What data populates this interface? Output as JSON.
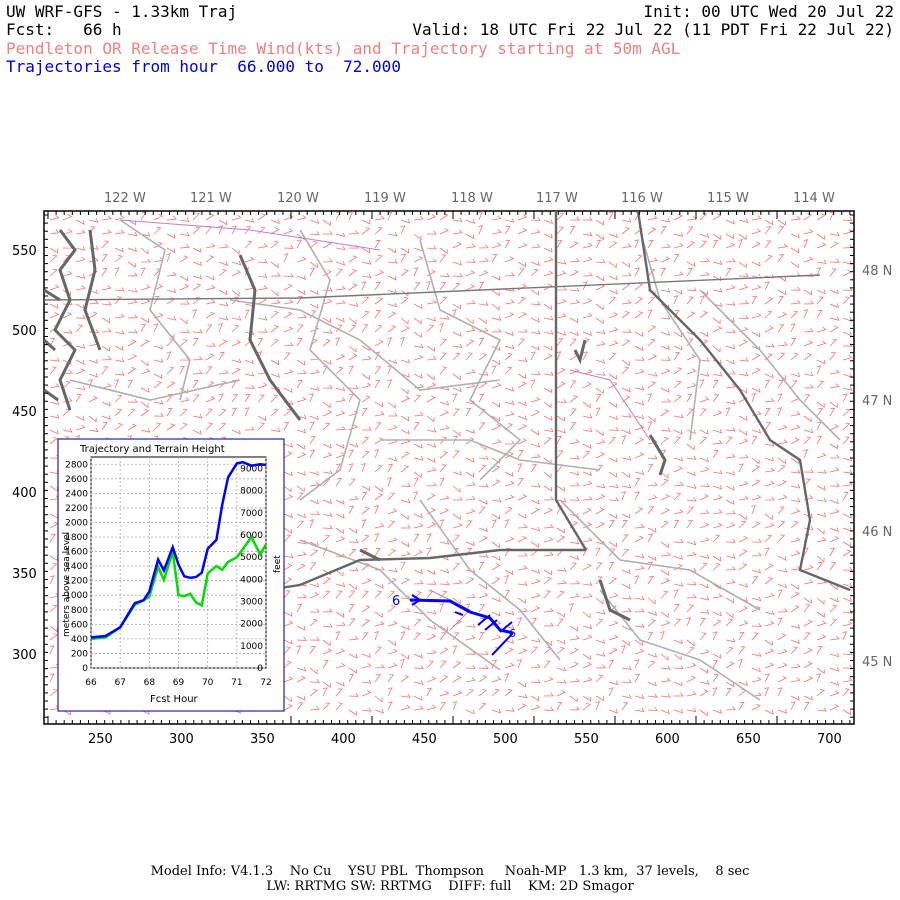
{
  "header": {
    "model": "UW WRF-GFS - 1.33km Traj",
    "init": "Init: 00 UTC Wed 20 Jul 22",
    "fcst": "Fcst:   66 h",
    "valid": "Valid: 18 UTC Fri 22 Jul 22 (11 PDT Fri 22 Jul 22)",
    "subtitle_red": "Pendleton OR Release Time Wind(kts) and Trajectory starting at 50m AGL",
    "subtitle_blue": "Trajectories from hour  66.000 to  72.000"
  },
  "map": {
    "lon_labels": [
      "122 W",
      "121 W",
      "120 W",
      "119 W",
      "118 W",
      "117 W",
      "116 W",
      "115 W",
      "114 W"
    ],
    "lat_labels": [
      "48 N",
      "47 N",
      "46 N",
      "45 N"
    ],
    "x_ticks": [
      "250",
      "300",
      "350",
      "400",
      "450",
      "500",
      "550",
      "600",
      "650",
      "700"
    ],
    "y_ticks": [
      "550",
      "500",
      "450",
      "400",
      "350",
      "300"
    ],
    "trajectory_start_label": "6",
    "trajectory_end_label": "6"
  },
  "inset": {
    "title": "Trajectory and Terrain Height",
    "left_label": "meters above sea level",
    "right_label": "feet",
    "x_label": "Fcst Hour",
    "x_ticks": [
      "66",
      "67",
      "68",
      "69",
      "70",
      "71",
      "72"
    ],
    "y_left_ticks": [
      "0",
      "200",
      "400",
      "600",
      "800",
      "1000",
      "1200",
      "1400",
      "1600",
      "1800",
      "2000",
      "2200",
      "2400",
      "2600",
      "2800"
    ],
    "y_right_ticks": [
      "0",
      "1000",
      "2000",
      "3000",
      "4000",
      "5000",
      "6000",
      "7000",
      "8000",
      "9000"
    ],
    "colors": {
      "trajectory": "#0000ff",
      "terrain": "#00dd00"
    }
  },
  "chart_data": {
    "type": "line",
    "title": "Trajectory and Terrain Height",
    "xlabel": "Fcst Hour",
    "ylabel": "meters above sea level",
    "xlim": [
      66,
      72
    ],
    "ylim": [
      0,
      2900
    ],
    "series": [
      {
        "name": "trajectory height",
        "x": [
          66,
          66.5,
          67,
          67.5,
          67.8,
          68,
          68.3,
          68.5,
          68.8,
          69,
          69.2,
          69.4,
          69.6,
          69.8,
          70,
          70.3,
          70.5,
          70.7,
          71,
          71.2,
          71.5,
          71.8,
          72
        ],
        "values": [
          420,
          440,
          560,
          890,
          930,
          1050,
          1490,
          1340,
          1660,
          1420,
          1260,
          1240,
          1250,
          1310,
          1640,
          1760,
          2250,
          2620,
          2810,
          2830,
          2780,
          2800,
          2790
        ]
      },
      {
        "name": "terrain height",
        "x": [
          66,
          66.5,
          67,
          67.5,
          67.8,
          68,
          68.3,
          68.5,
          68.8,
          69,
          69.2,
          69.4,
          69.6,
          69.8,
          70,
          70.3,
          70.5,
          70.7,
          71,
          71.2,
          71.5,
          71.8,
          72
        ],
        "values": [
          400,
          420,
          560,
          870,
          930,
          980,
          1390,
          1210,
          1600,
          1000,
          990,
          1020,
          900,
          860,
          1300,
          1400,
          1350,
          1460,
          1520,
          1630,
          1800,
          1560,
          1700
        ]
      }
    ]
  },
  "footer": {
    "line1": "Model Info: V4.1.3    No Cu    YSU PBL  Thompson     Noah-MP   1.3 km,  37 levels,    8 sec",
    "line2": "LW: RRTMG SW: RRTMG    DIFF: full    KM: 2D Smagor"
  }
}
